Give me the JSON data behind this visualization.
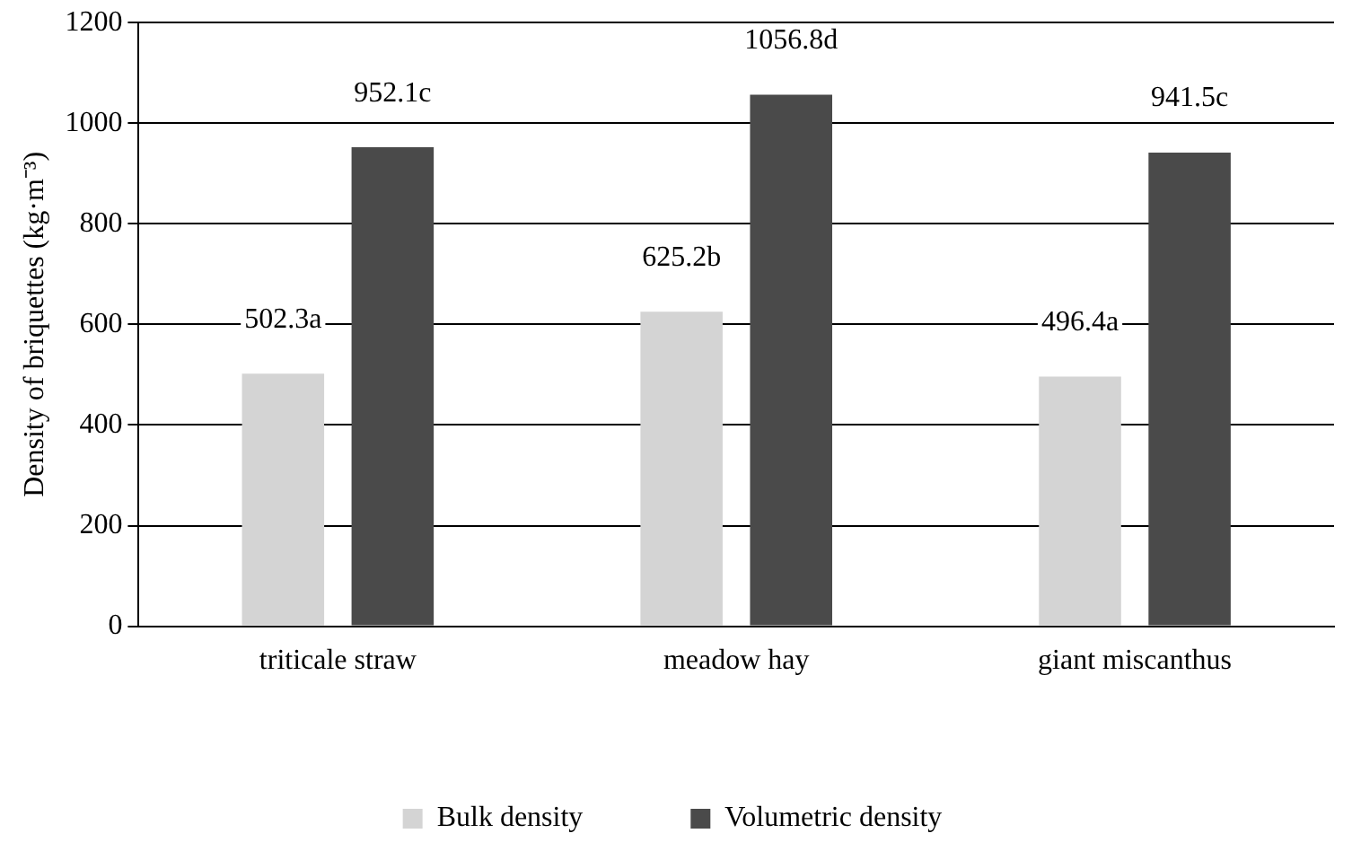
{
  "chart_data": {
    "type": "bar",
    "ylabel": "Density of briquettes (kg·m⁻³)",
    "categories": [
      "triticale straw",
      "meadow hay",
      "giant miscanthus"
    ],
    "series": [
      {
        "name": "Bulk density",
        "color": "#d4d4d4",
        "values": [
          502.3,
          625.2,
          496.4
        ],
        "value_labels": [
          "502.3a",
          "625.2b",
          "496.4a"
        ]
      },
      {
        "name": "Volumetric density",
        "color": "#4a4a4a",
        "values": [
          952.1,
          1056.8,
          941.5
        ],
        "value_labels": [
          "952.1c",
          "1056.8d",
          "941.5c"
        ]
      }
    ],
    "ylim": [
      0,
      1200
    ],
    "yticks": [
      0,
      200,
      400,
      600,
      800,
      1000,
      1200
    ],
    "grid": "y",
    "legend": "bottom"
  }
}
